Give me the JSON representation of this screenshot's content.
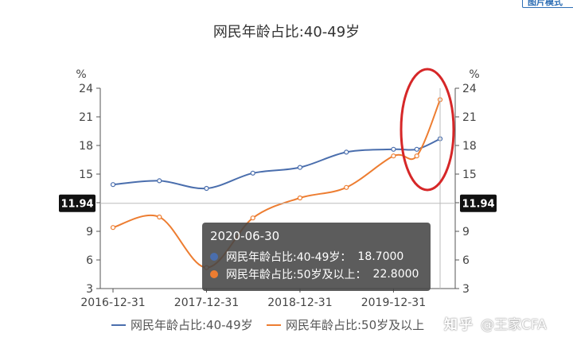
{
  "corner_button": "图片模式",
  "chart_data": {
    "type": "line",
    "title": "网民年龄占比:40-49岁",
    "ylabel_left": "%",
    "ylabel_right": "%",
    "ylim": [
      3,
      24
    ],
    "yticks": [
      3,
      6,
      9,
      12,
      15,
      18,
      21,
      24
    ],
    "x_tick_labels": [
      "2016-12-31",
      "2017-12-31",
      "2018-12-31",
      "2019-12-31"
    ],
    "x_tick_dates": [
      "2016-12-31",
      "2017-12-31",
      "2018-12-31",
      "2019-12-31"
    ],
    "x_range": [
      "2016-12-31",
      "2020-06-30"
    ],
    "grid": false,
    "legend_position": "bottom",
    "crosshair": {
      "x": "2020-06-30",
      "y_label": "11.94"
    },
    "series": [
      {
        "name": "网民年龄占比:40-49岁",
        "color": "#4a6ead",
        "x": [
          "2016-12-31",
          "2017-06-30",
          "2017-12-31",
          "2018-06-30",
          "2018-12-31",
          "2019-06-30",
          "2019-12-31",
          "2020-03-31",
          "2020-06-30"
        ],
        "values": [
          13.9,
          14.3,
          13.5,
          15.1,
          15.7,
          17.3,
          17.6,
          17.6,
          18.7
        ]
      },
      {
        "name": "网民年龄占比:50岁及以上",
        "color": "#ed7d31",
        "x": [
          "2016-12-31",
          "2017-06-30",
          "2017-12-31",
          "2018-06-30",
          "2018-12-31",
          "2019-06-30",
          "2019-12-31",
          "2020-03-31",
          "2020-06-30"
        ],
        "values": [
          9.4,
          10.5,
          5.2,
          10.4,
          12.5,
          13.6,
          16.9,
          16.9,
          22.8
        ]
      }
    ]
  },
  "tooltip": {
    "date": "2020-06-30",
    "rows": [
      {
        "label": "网民年龄占比:40-49岁：",
        "value": "18.7000",
        "color": "#4a6ead"
      },
      {
        "label": "网民年龄占比:50岁及以上：",
        "value": "22.8000",
        "color": "#ed7d31"
      }
    ]
  },
  "watermark": {
    "logo": "知乎",
    "author": "@王家CFA"
  },
  "annotation": {
    "type": "ellipse",
    "color": "#d62728"
  }
}
